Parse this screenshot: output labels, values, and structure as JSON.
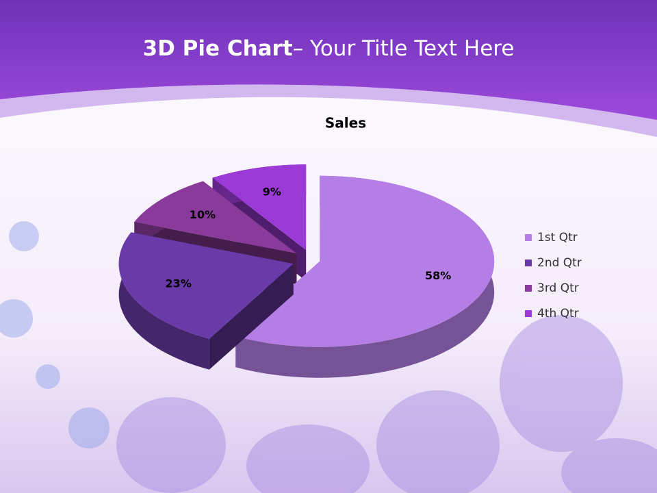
{
  "slide": {
    "title_bold": "3D Pie Chart",
    "title_rest": "– Your Title Text Here"
  },
  "chart_data": {
    "type": "pie",
    "title": "Sales",
    "categories": [
      "1st Qtr",
      "2nd Qtr",
      "3rd Qtr",
      "4th Qtr"
    ],
    "values": [
      58,
      23,
      10,
      9
    ],
    "value_labels": [
      "58%",
      "23%",
      "10%",
      "9%"
    ],
    "colors": [
      "#b57ee6",
      "#6a3aa8",
      "#8a3a9a",
      "#9b3ad6"
    ],
    "legend": "right"
  }
}
